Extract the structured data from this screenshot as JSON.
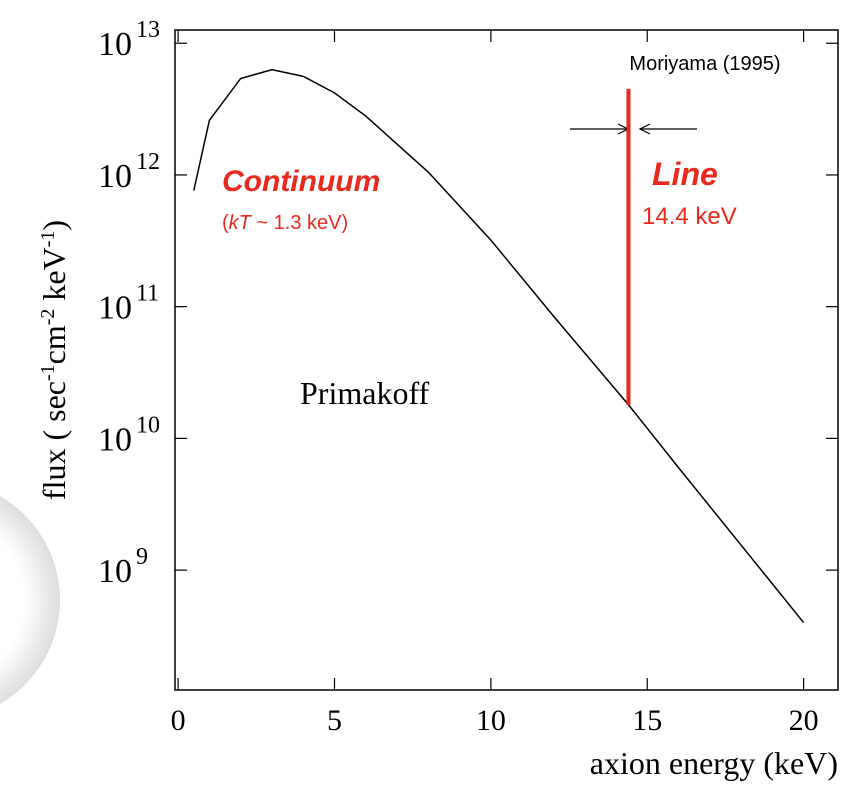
{
  "chart_data": {
    "type": "line",
    "y_label": [
      {
        "text": "flux ( sec"
      },
      {
        "text": "-1",
        "sup": true
      },
      {
        "text": "cm"
      },
      {
        "text": "-2",
        "sup": true
      },
      {
        "text": " keV"
      },
      {
        "text": "-1",
        "sup": true
      },
      {
        "text": ")"
      }
    ],
    "x_label": "axion energy (keV)",
    "xlim": [
      -0.1,
      21.1
    ],
    "xticks": [
      0,
      5,
      10,
      15,
      20
    ],
    "ylim": [
      123000000.0,
      12600000000000.0
    ],
    "log_y": true,
    "yticks": [
      {
        "value": 1000000000.0,
        "label": "10",
        "exponent": "9"
      },
      {
        "value": 10000000000.0,
        "label": "10",
        "exponent": "10"
      },
      {
        "value": 100000000000.0,
        "label": "10",
        "exponent": "11"
      },
      {
        "value": 1000000000000.0,
        "label": "10",
        "exponent": "12"
      },
      {
        "value": 10000000000000.0,
        "label": "10",
        "exponent": "13"
      }
    ],
    "series": [
      {
        "name": "Primakoff",
        "color": "#000000",
        "x": [
          0.5,
          1,
          2,
          3,
          4,
          5,
          6,
          8,
          10,
          12,
          14.4,
          16,
          18,
          20
        ],
        "values": [
          760000000000.0,
          2600000000000.0,
          5400000000000.0,
          6300000000000.0,
          5600000000000.0,
          4200000000000.0,
          2800000000000.0,
          1050000000000.0,
          320000000000.0,
          85000000000.0,
          18000000000.0,
          6000000000.0,
          1550000000.0,
          400000000.0
        ]
      }
    ],
    "line_marker": {
      "x": 14.4,
      "y": [
        18000000000.0,
        4500000000000.0
      ],
      "color": "#e8291c"
    },
    "annotations": {
      "moriyama": "Moriyama (1995)",
      "continuum": "Continuum",
      "kt": [
        {
          "text": "("
        },
        {
          "text": "kT",
          "italic": true
        },
        {
          "text": " ~ 1.3 keV)"
        }
      ],
      "line": "Line",
      "line_energy": "14.4 keV",
      "primakoff": "Primakoff"
    }
  }
}
